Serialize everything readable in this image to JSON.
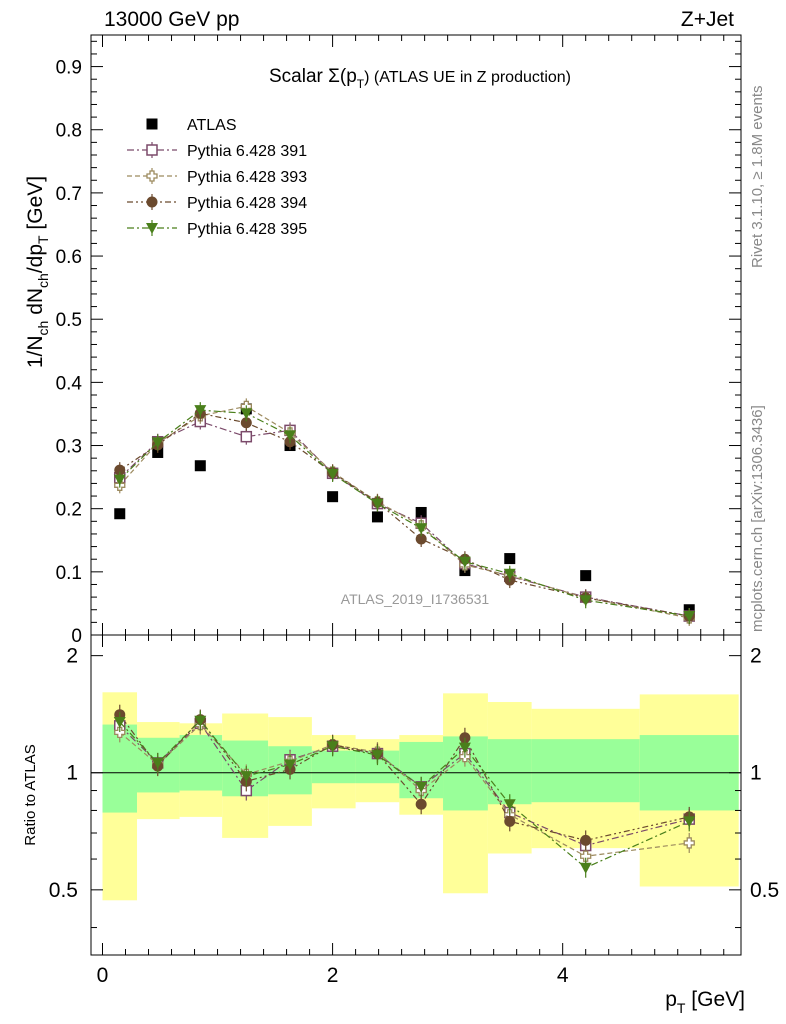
{
  "header": {
    "left": "13000 GeV pp",
    "right": "Z+Jet"
  },
  "side_text": {
    "rivet": "Rivet 3.1.10, ≥ 1.8M events",
    "mcplots": "mcplots.cern.ch [arXiv:1306.3436]"
  },
  "chart_data": [
    {
      "type": "scatter",
      "panel": "main",
      "title": "Scalar Σ(p_T) (ATLAS UE in Z production)",
      "title_parts": {
        "main": "Scalar Σ(p",
        "sub": "T",
        "rest": ") (ATLAS UE in Z production)"
      },
      "watermark": "ATLAS_2019_I1736531",
      "xlabel": "p_T [GeV]",
      "ylabel": "1/N_ch dN_ch/dp_T [GeV]",
      "xlim": [
        -0.1,
        5.55
      ],
      "ylim": [
        0,
        0.95
      ],
      "yticks": [
        0,
        0.1,
        0.2,
        0.3,
        0.4,
        0.5,
        0.6,
        0.7,
        0.8,
        0.9
      ],
      "ytick_labels": [
        "0",
        "0.1",
        "0.2",
        "0.3",
        "0.4",
        "0.5",
        "0.6",
        "0.7",
        "0.8",
        "0.9"
      ],
      "legend_position": "top-left",
      "x": [
        0.15,
        0.48,
        0.85,
        1.25,
        1.63,
        2.0,
        2.39,
        2.77,
        3.15,
        3.54,
        4.2,
        5.1
      ],
      "series": [
        {
          "name": "ATLAS",
          "color": "#000000",
          "marker": "filled-square",
          "line": "none",
          "values": [
            0.192,
            0.289,
            0.268,
            0.358,
            0.3,
            0.219,
            0.187,
            0.194,
            0.102,
            0.121,
            0.094,
            0.04
          ]
        },
        {
          "name": "Pythia 6.428 391",
          "color": "#7b4a6a",
          "marker": "open-square",
          "line": "dash-dot",
          "values": [
            0.249,
            0.306,
            0.338,
            0.314,
            0.324,
            0.256,
            0.208,
            0.177,
            0.113,
            0.093,
            0.06,
            0.03
          ]
        },
        {
          "name": "Pythia 6.428 393",
          "color": "#9c8a5e",
          "marker": "open-plus",
          "line": "dash",
          "values": [
            0.237,
            0.304,
            0.347,
            0.362,
            0.32,
            0.258,
            0.211,
            0.173,
            0.111,
            0.094,
            0.059,
            0.027
          ]
        },
        {
          "name": "Pythia 6.428 394",
          "color": "#6b4a2e",
          "marker": "filled-circle",
          "line": "dash-dot-dot",
          "values": [
            0.261,
            0.301,
            0.351,
            0.336,
            0.306,
            0.257,
            0.21,
            0.152,
            0.12,
            0.087,
            0.059,
            0.03
          ]
        },
        {
          "name": "Pythia 6.428 395",
          "color": "#4a7f1b",
          "marker": "filled-triangle-down",
          "line": "dash-dot",
          "values": [
            0.246,
            0.305,
            0.356,
            0.351,
            0.316,
            0.255,
            0.208,
            0.169,
            0.116,
            0.097,
            0.055,
            0.03
          ]
        }
      ]
    },
    {
      "type": "scatter",
      "panel": "ratio",
      "ylabel": "Ratio to ATLAS",
      "xlabel": "p_T [GeV]",
      "xlim": [
        -0.1,
        5.55
      ],
      "ylim": [
        0.34,
        2.26
      ],
      "log_y": true,
      "xticks": [
        0,
        2,
        4
      ],
      "xtick_labels": [
        "0",
        "2",
        "4"
      ],
      "yticks": [
        0.5,
        1,
        2
      ],
      "ytick_labels": [
        "0.5",
        "1",
        "2"
      ],
      "bins": [
        [
          0.0,
          0.3
        ],
        [
          0.3,
          0.67
        ],
        [
          0.67,
          1.04
        ],
        [
          1.04,
          1.44
        ],
        [
          1.44,
          1.82
        ],
        [
          1.82,
          2.2
        ],
        [
          2.2,
          2.58
        ],
        [
          2.58,
          2.96
        ],
        [
          2.96,
          3.35
        ],
        [
          3.35,
          3.73
        ],
        [
          3.73,
          4.67
        ],
        [
          4.67,
          5.53
        ]
      ],
      "band_inner": [
        [
          0.79,
          1.33
        ],
        [
          0.89,
          1.23
        ],
        [
          0.9,
          1.25
        ],
        [
          0.87,
          1.21
        ],
        [
          0.88,
          1.17
        ],
        [
          0.94,
          1.14
        ],
        [
          0.94,
          1.14
        ],
        [
          0.86,
          1.2
        ],
        [
          0.8,
          1.24
        ],
        [
          0.83,
          1.22
        ],
        [
          0.84,
          1.22
        ],
        [
          0.8,
          1.25
        ]
      ],
      "band_outer": [
        [
          0.47,
          1.61
        ],
        [
          0.76,
          1.35
        ],
        [
          0.77,
          1.34
        ],
        [
          0.68,
          1.42
        ],
        [
          0.73,
          1.39
        ],
        [
          0.81,
          1.25
        ],
        [
          0.84,
          1.22
        ],
        [
          0.78,
          1.25
        ],
        [
          0.49,
          1.6
        ],
        [
          0.62,
          1.52
        ],
        [
          0.64,
          1.46
        ],
        [
          0.51,
          1.59
        ]
      ],
      "series": [
        {
          "name": "Pythia 6.428 391",
          "values": [
            1.32,
            1.06,
            1.34,
            0.9,
            1.08,
            1.17,
            1.12,
            0.92,
            1.12,
            0.79,
            0.65,
            0.76
          ]
        },
        {
          "name": "Pythia 6.428 393",
          "values": [
            1.27,
            1.05,
            1.33,
            0.99,
            1.07,
            1.18,
            1.13,
            0.9,
            1.1,
            0.78,
            0.61,
            0.66
          ]
        },
        {
          "name": "Pythia 6.428 394",
          "values": [
            1.41,
            1.04,
            1.37,
            0.95,
            1.02,
            1.18,
            1.12,
            0.83,
            1.23,
            0.75,
            0.67,
            0.77
          ]
        },
        {
          "name": "Pythia 6.428 395",
          "values": [
            1.35,
            1.06,
            1.36,
            0.98,
            1.05,
            1.17,
            1.11,
            0.92,
            1.16,
            0.83,
            0.57,
            0.75
          ]
        }
      ]
    }
  ]
}
